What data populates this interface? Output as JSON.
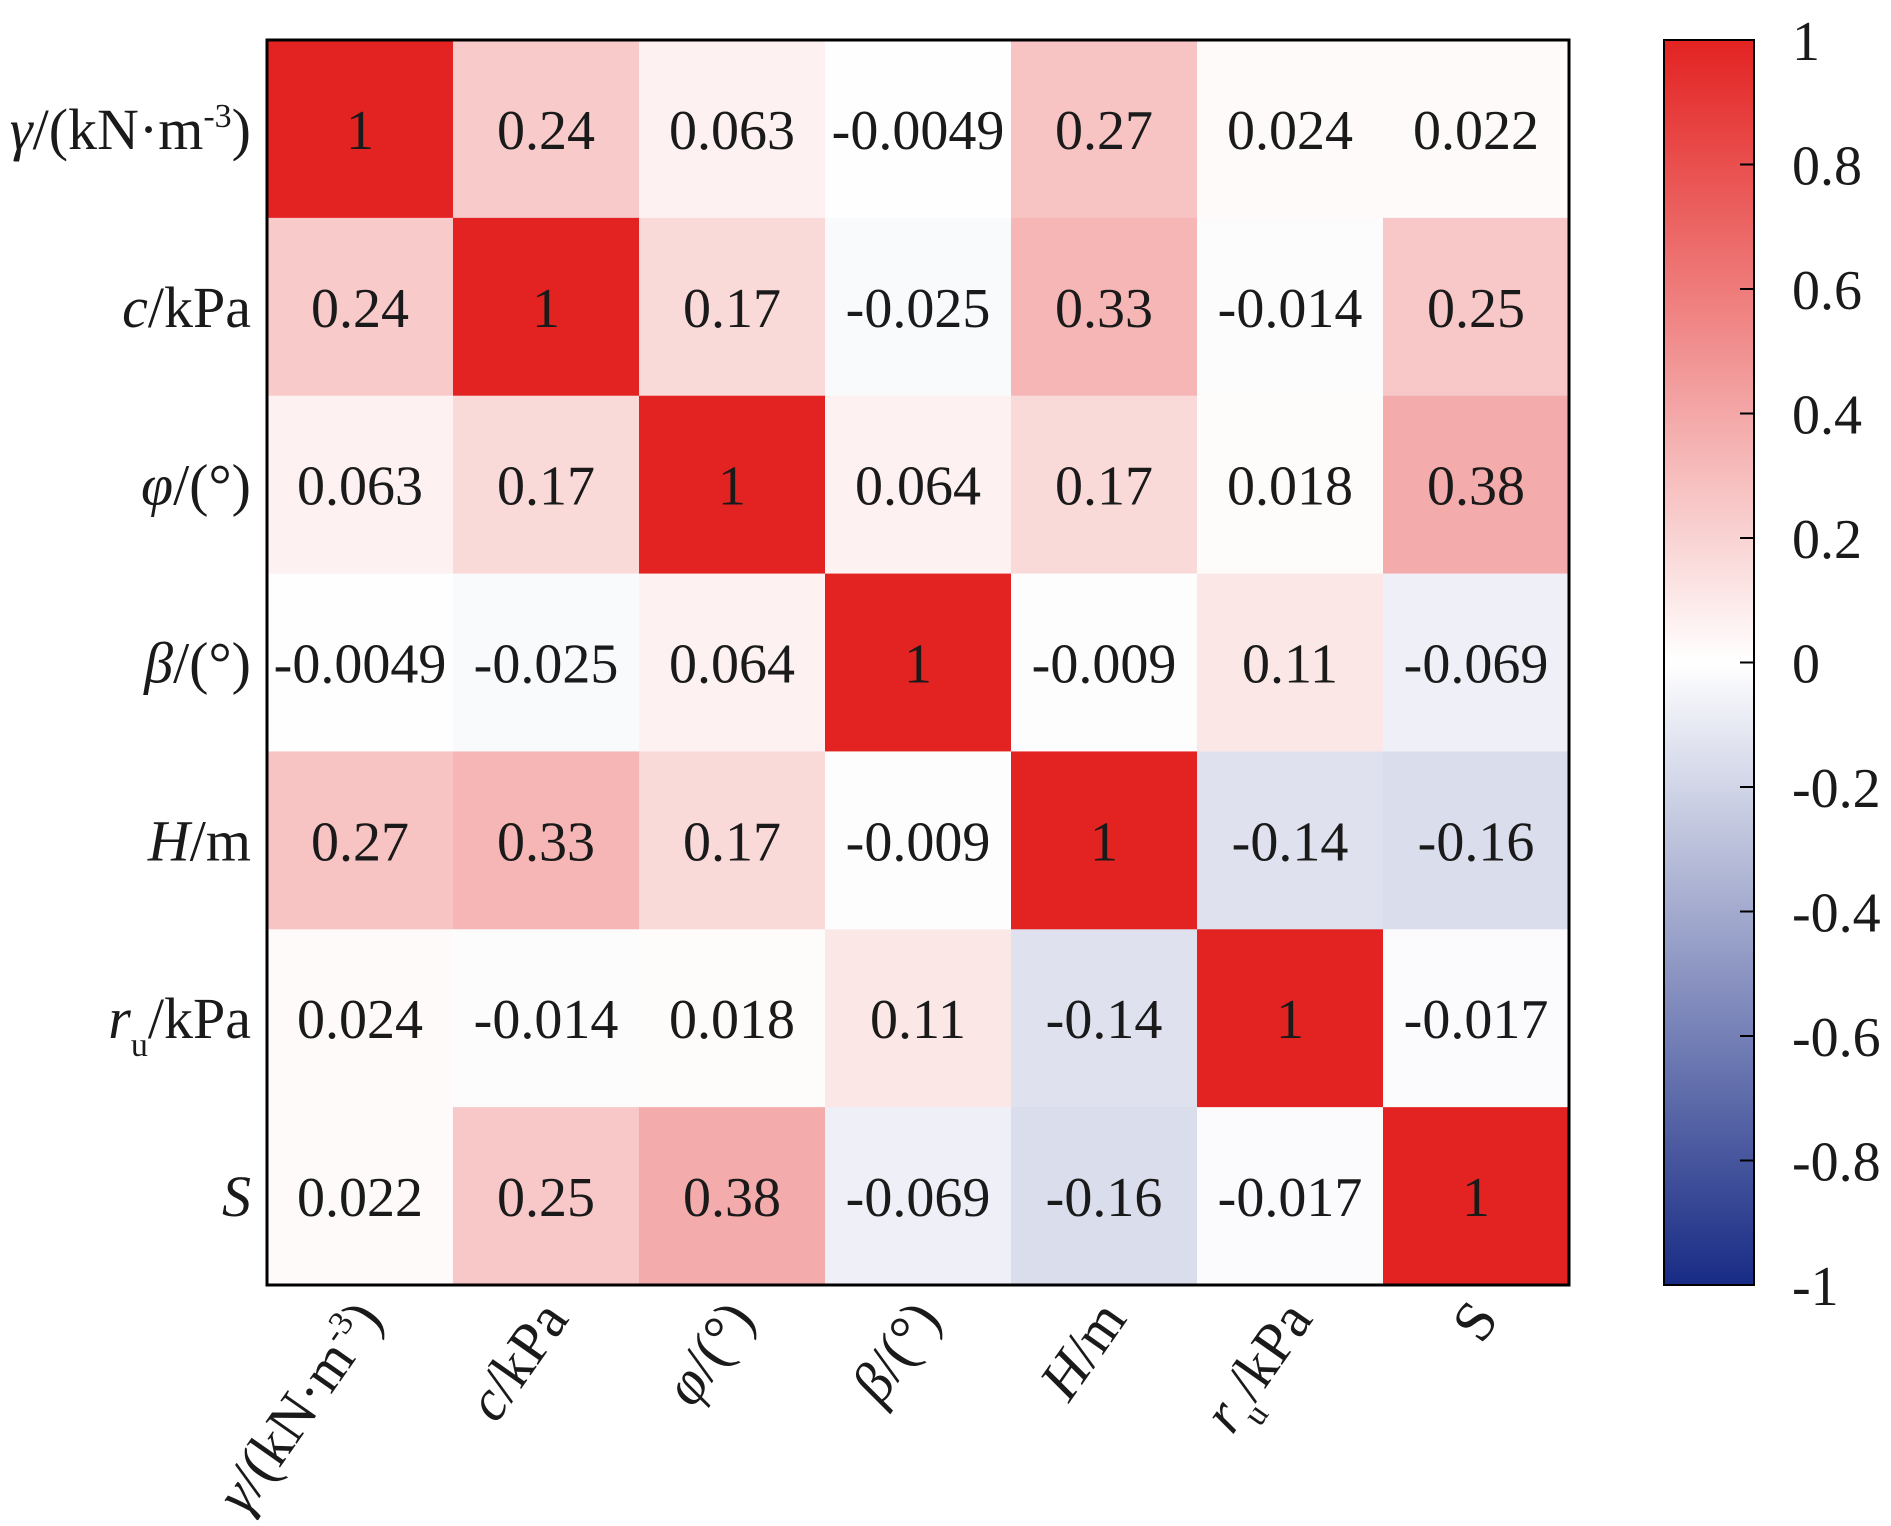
{
  "chart_data": {
    "type": "heatmap",
    "title": "",
    "row_labels": [
      {
        "main": "γ",
        "rest": "/(kN·m",
        "sup": "-3",
        "tail": ")"
      },
      {
        "main": "c",
        "rest": "/kPa"
      },
      {
        "main": "φ",
        "rest": "/(°)"
      },
      {
        "main": "β",
        "rest": "/(°)"
      },
      {
        "main": "H",
        "rest": "/m"
      },
      {
        "main": "r",
        "sub": "u",
        "rest": "/kPa"
      },
      {
        "main": "S",
        "rest": ""
      }
    ],
    "col_labels": [
      {
        "main": "γ",
        "rest": "/(kN·m",
        "sup": "-3",
        "tail": ")"
      },
      {
        "main": "c",
        "rest": "/kPa"
      },
      {
        "main": "φ",
        "rest": "/(°)"
      },
      {
        "main": "β",
        "rest": "/(°)"
      },
      {
        "main": "H",
        "rest": "/m"
      },
      {
        "main": "r",
        "sub": "u",
        "rest": "/kPa"
      },
      {
        "plain": "S"
      }
    ],
    "matrix": [
      [
        1,
        0.24,
        0.063,
        -0.0049,
        0.27,
        0.024,
        0.022
      ],
      [
        0.24,
        1,
        0.17,
        -0.025,
        0.33,
        -0.014,
        0.25
      ],
      [
        0.063,
        0.17,
        1,
        0.064,
        0.17,
        0.018,
        0.38
      ],
      [
        -0.0049,
        -0.025,
        0.064,
        1,
        -0.009,
        0.11,
        -0.069
      ],
      [
        0.27,
        0.33,
        0.17,
        -0.009,
        1,
        -0.14,
        -0.16
      ],
      [
        0.024,
        -0.014,
        0.018,
        0.11,
        -0.14,
        1,
        -0.017
      ],
      [
        0.022,
        0.25,
        0.38,
        -0.069,
        -0.16,
        -0.017,
        1
      ]
    ],
    "cell_labels": [
      [
        "1",
        "0.24",
        "0.063",
        "-0.0049",
        "0.27",
        "0.024",
        "0.022"
      ],
      [
        "0.24",
        "1",
        "0.17",
        "-0.025",
        "0.33",
        "-0.014",
        "0.25"
      ],
      [
        "0.063",
        "0.17",
        "1",
        "0.064",
        "0.17",
        "0.018",
        "0.38"
      ],
      [
        "-0.0049",
        "-0.025",
        "0.064",
        "1",
        "-0.009",
        "0.11",
        "-0.069"
      ],
      [
        "0.27",
        "0.33",
        "0.17",
        "-0.009",
        "1",
        "-0.14",
        "-0.16"
      ],
      [
        "0.024",
        "-0.014",
        "0.018",
        "0.11",
        "-0.14",
        "1",
        "-0.017"
      ],
      [
        "0.022",
        "0.25",
        "0.38",
        "-0.069",
        "-0.16",
        "-0.017",
        "1"
      ]
    ],
    "colorbar": {
      "range": [
        -1,
        1
      ],
      "ticks": [
        1,
        0.8,
        0.6,
        0.4,
        0.2,
        0,
        -0.2,
        -0.4,
        -0.6,
        -0.8,
        -1
      ],
      "tick_labels": [
        "1",
        "0.8",
        "0.6",
        "0.4",
        "0.2",
        "0",
        "-0.2",
        "-0.4",
        "-0.6",
        "-0.8",
        "-1"
      ],
      "colors": {
        "max": "#e32322",
        "mid": "#ffffff",
        "min": "#182b85"
      },
      "placement": "right"
    }
  }
}
